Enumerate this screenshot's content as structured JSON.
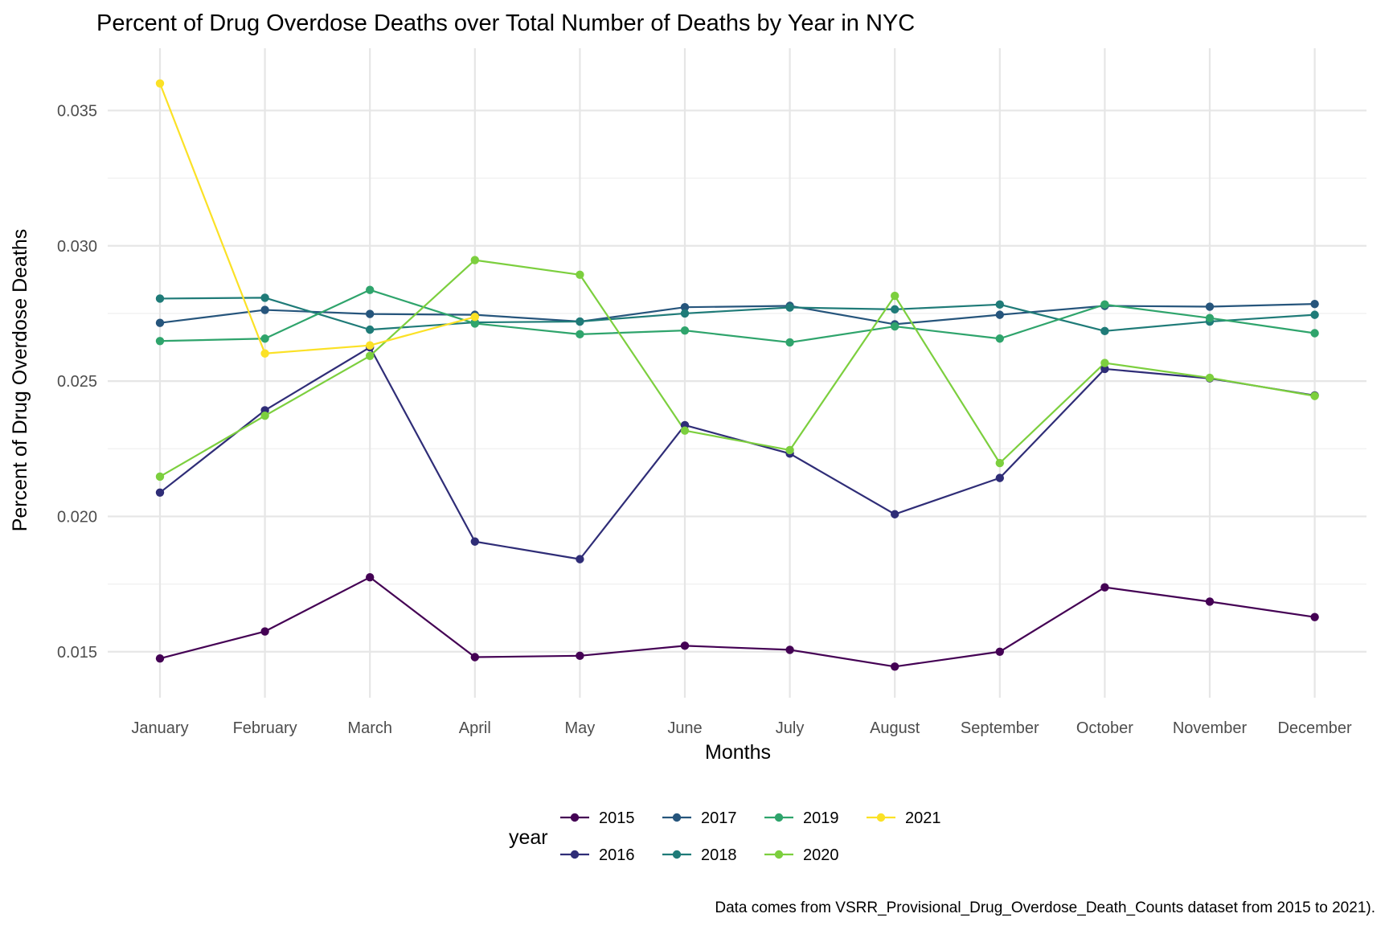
{
  "chart_data": {
    "type": "line",
    "title": "Percent of Drug Overdose Deaths over Total Number of Deaths by Year in NYC",
    "xlabel": "Months",
    "ylabel": "Percent of Drug Overdose Deaths",
    "caption": "Data comes from VSRR_Provisional_Drug_Overdose_Death_Counts dataset from 2015 to 2021).",
    "legend_title": "year",
    "legend_position": "bottom",
    "grid": true,
    "categories": [
      "January",
      "February",
      "March",
      "April",
      "May",
      "June",
      "July",
      "August",
      "September",
      "October",
      "November",
      "December"
    ],
    "ylim": [
      0.0133,
      0.0373
    ],
    "y_ticks": [
      0.015,
      0.02,
      0.025,
      0.03,
      0.035
    ],
    "y_tick_labels": [
      "0.015",
      "0.020",
      "0.025",
      "0.030",
      "0.035"
    ],
    "series": [
      {
        "name": "2015",
        "color": "#440154",
        "values": [
          0.01475,
          0.01575,
          0.01775,
          0.0148,
          0.01485,
          0.01522,
          0.01507,
          0.01445,
          0.015,
          0.01738,
          0.01685,
          0.01628
        ]
      },
      {
        "name": "2016",
        "color": "#2f2d77",
        "values": [
          0.02088,
          0.02392,
          0.02625,
          0.01907,
          0.01842,
          0.02337,
          0.02232,
          0.02008,
          0.02142,
          0.02545,
          0.0251,
          0.02447
        ]
      },
      {
        "name": "2017",
        "color": "#26557c",
        "values": [
          0.02715,
          0.02763,
          0.02748,
          0.02745,
          0.0272,
          0.02773,
          0.02778,
          0.0271,
          0.02745,
          0.02778,
          0.02775,
          0.02785
        ]
      },
      {
        "name": "2018",
        "color": "#1f7b78",
        "values": [
          0.02805,
          0.02808,
          0.0269,
          0.02717,
          0.0272,
          0.0275,
          0.02772,
          0.02765,
          0.02783,
          0.02685,
          0.0272,
          0.02745
        ]
      },
      {
        "name": "2019",
        "color": "#2fa46c",
        "values": [
          0.02648,
          0.02657,
          0.02837,
          0.02713,
          0.02673,
          0.02687,
          0.02643,
          0.02702,
          0.02657,
          0.02783,
          0.02733,
          0.02677
        ]
      },
      {
        "name": "2020",
        "color": "#7ccf3e",
        "values": [
          0.02147,
          0.02372,
          0.02593,
          0.02947,
          0.02893,
          0.02317,
          0.02245,
          0.02815,
          0.02197,
          0.02567,
          0.02512,
          0.02445
        ]
      },
      {
        "name": "2021",
        "color": "#fbe126",
        "values": [
          0.036,
          0.02602,
          0.02632,
          0.02737,
          null,
          null,
          null,
          null,
          null,
          null,
          null,
          null
        ]
      }
    ]
  }
}
